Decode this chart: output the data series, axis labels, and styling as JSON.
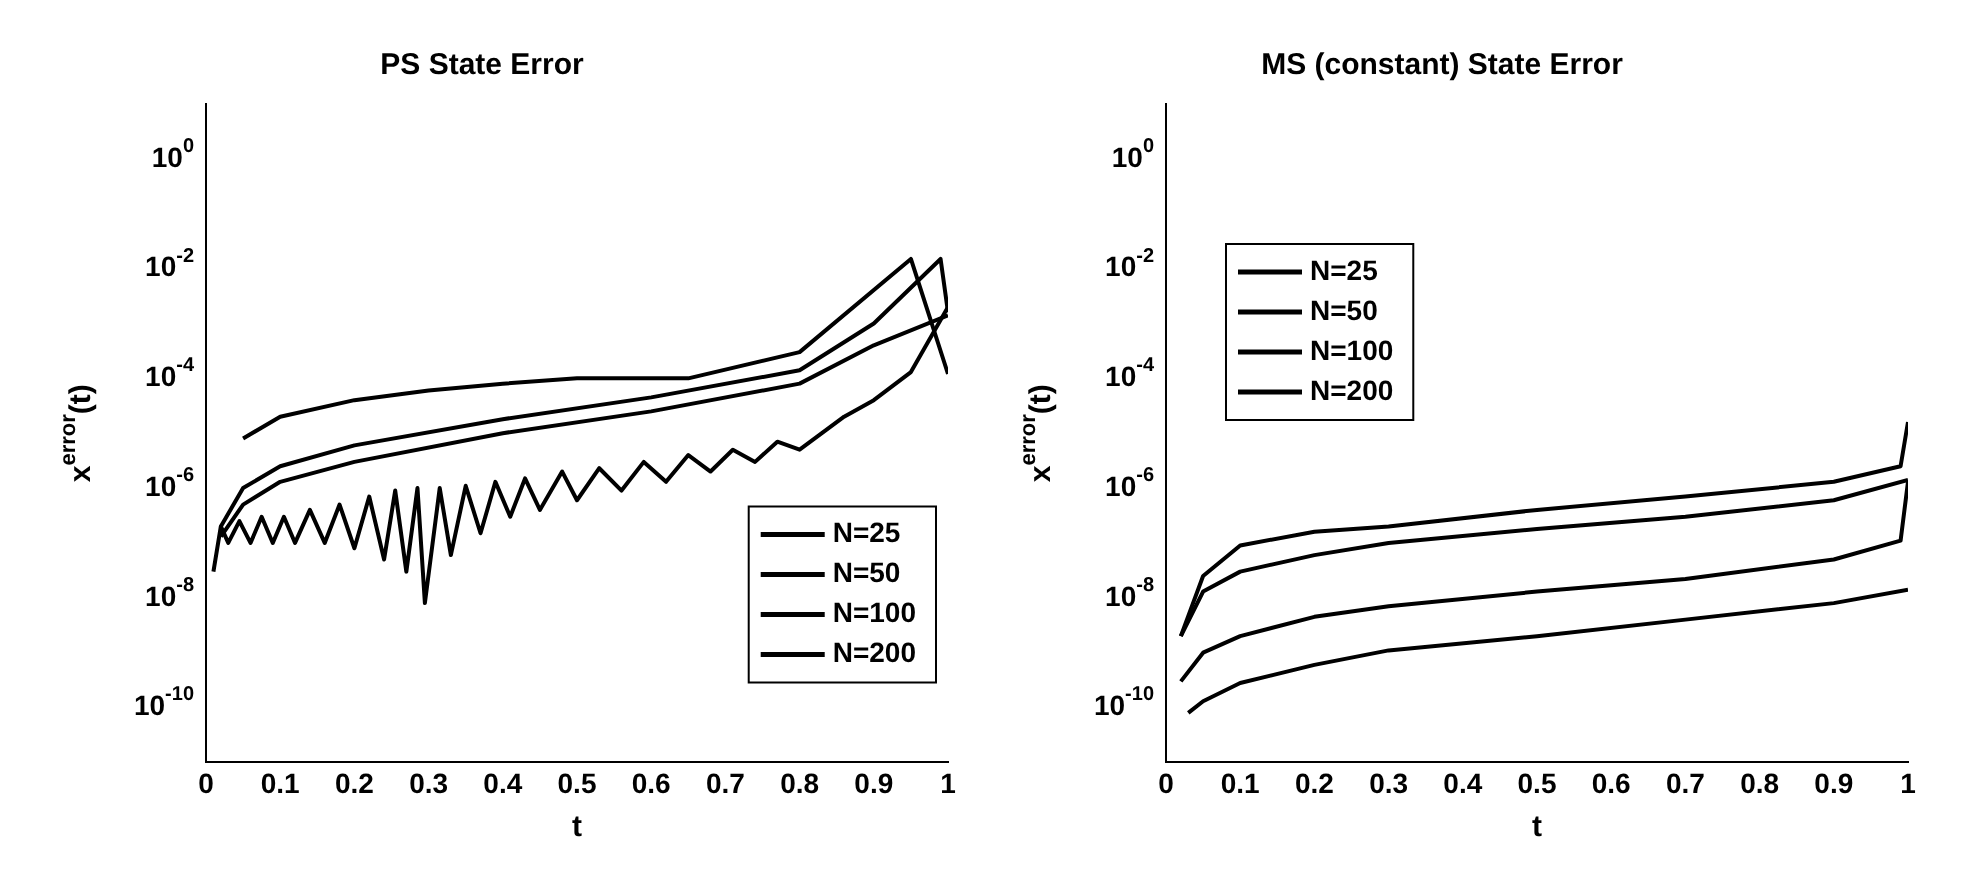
{
  "chart_data": [
    {
      "type": "line",
      "title": "PS State Error",
      "xlabel": "t",
      "ylabel": "x$^{error}$(t)",
      "log": "y",
      "legend": "bottom right",
      "xlim": [
        0,
        1
      ],
      "xticks": [
        0,
        0.1,
        0.2,
        0.3,
        0.4,
        0.5,
        0.6,
        0.7,
        0.8,
        0.9,
        1
      ],
      "ylim": [
        1e-11,
        10
      ],
      "yticks": [
        {
          "value": 1,
          "label": "10$^{0}$"
        },
        {
          "value": 0.01,
          "label": "10$^{-2}$"
        },
        {
          "value": 0.0001,
          "label": "10$^{-4}$"
        },
        {
          "value": 1e-06,
          "label": "10$^{-6}$"
        },
        {
          "value": 1e-08,
          "label": "10$^{-8}$"
        },
        {
          "value": 1e-10,
          "label": "10$^{-10}$"
        }
      ],
      "series": [
        {
          "name": "N=25",
          "color": "#000000",
          "x": [
            0.05,
            0.1,
            0.2,
            0.3,
            0.4,
            0.5,
            0.6,
            0.65,
            0.8,
            0.95,
            1.0
          ],
          "values": [
            8e-06,
            2e-05,
            4e-05,
            6e-05,
            8e-05,
            0.0001,
            0.0001,
            0.0001,
            0.0003,
            0.015,
            0.00012
          ]
        },
        {
          "name": "N=50",
          "color": "#000000",
          "x": [
            0.02,
            0.05,
            0.1,
            0.2,
            0.4,
            0.6,
            0.8,
            0.9,
            0.99,
            1.0
          ],
          "values": [
            2e-07,
            1e-06,
            2.5e-06,
            6e-06,
            1.8e-05,
            4.5e-05,
            0.00014,
            0.001,
            0.015,
            0.0016
          ]
        },
        {
          "name": "N=100",
          "color": "#000000",
          "x": [
            0.02,
            0.05,
            0.1,
            0.2,
            0.4,
            0.6,
            0.8,
            0.9,
            1.0
          ],
          "values": [
            1.3e-07,
            5e-07,
            1.3e-06,
            3e-06,
            1e-05,
            2.5e-05,
            8e-05,
            0.0004,
            0.0014
          ]
        },
        {
          "name": "N=200",
          "color": "#000000",
          "x": [
            0.01,
            0.02,
            0.03,
            0.045,
            0.06,
            0.075,
            0.09,
            0.105,
            0.12,
            0.14,
            0.16,
            0.18,
            0.2,
            0.22,
            0.24,
            0.255,
            0.27,
            0.285,
            0.295,
            0.315,
            0.33,
            0.35,
            0.37,
            0.39,
            0.41,
            0.43,
            0.45,
            0.48,
            0.5,
            0.53,
            0.56,
            0.59,
            0.62,
            0.65,
            0.68,
            0.71,
            0.74,
            0.77,
            0.8,
            0.83,
            0.86,
            0.9,
            0.95,
            1.0
          ],
          "values": [
            3e-08,
            2e-07,
            1e-07,
            2.5e-07,
            1e-07,
            3e-07,
            1e-07,
            3e-07,
            1e-07,
            4e-07,
            1e-07,
            5e-07,
            8e-08,
            7e-07,
            5e-08,
            9e-07,
            3e-08,
            1e-06,
            8e-09,
            1e-06,
            6e-08,
            1.1e-06,
            1.5e-07,
            1.3e-06,
            3e-07,
            1.5e-06,
            4e-07,
            2e-06,
            6e-07,
            2.3e-06,
            9e-07,
            3e-06,
            1.3e-06,
            4e-06,
            2e-06,
            5e-06,
            3e-06,
            7e-06,
            5e-06,
            1e-05,
            2e-05,
            4e-05,
            0.00013,
            0.002
          ]
        }
      ]
    },
    {
      "type": "line",
      "title": "MS (constant) State Error",
      "xlabel": "t",
      "ylabel": "x$^{error}$(t)",
      "log": "y",
      "legend": "top left",
      "xlim": [
        0,
        1
      ],
      "xticks": [
        0,
        0.1,
        0.2,
        0.3,
        0.4,
        0.5,
        0.6,
        0.7,
        0.8,
        0.9,
        1
      ],
      "ylim": [
        1e-11,
        10
      ],
      "yticks": [
        {
          "value": 1,
          "label": "10$^{0}$"
        },
        {
          "value": 0.01,
          "label": "10$^{-2}$"
        },
        {
          "value": 0.0001,
          "label": "10$^{-4}$"
        },
        {
          "value": 1e-06,
          "label": "10$^{-6}$"
        },
        {
          "value": 1e-08,
          "label": "10$^{-8}$"
        },
        {
          "value": 1e-10,
          "label": "10$^{-10}$"
        }
      ],
      "series": [
        {
          "name": "N=25",
          "color": "#000000",
          "x": [
            0.02,
            0.05,
            0.1,
            0.2,
            0.3,
            0.5,
            0.7,
            0.9,
            0.99,
            1.0
          ],
          "values": [
            2e-09,
            2.5e-08,
            9e-08,
            1.6e-07,
            2e-07,
            4e-07,
            7e-07,
            1.3e-06,
            2.5e-06,
            1.6e-05
          ]
        },
        {
          "name": "N=50",
          "color": "#000000",
          "x": [
            0.02,
            0.05,
            0.1,
            0.2,
            0.3,
            0.5,
            0.7,
            0.9,
            1.0
          ],
          "values": [
            2e-09,
            1.3e-08,
            3e-08,
            6e-08,
            1e-07,
            1.8e-07,
            3e-07,
            6e-07,
            1.4e-06
          ]
        },
        {
          "name": "N=100",
          "color": "#000000",
          "x": [
            0.02,
            0.05,
            0.1,
            0.2,
            0.3,
            0.5,
            0.7,
            0.9,
            0.99,
            1.0
          ],
          "values": [
            3e-10,
            1e-09,
            2e-09,
            4.5e-09,
            7e-09,
            1.3e-08,
            2.2e-08,
            5e-08,
            1.1e-07,
            1.3e-06
          ]
        },
        {
          "name": "N=200",
          "color": "#000000",
          "x": [
            0.03,
            0.05,
            0.1,
            0.2,
            0.3,
            0.5,
            0.7,
            0.9,
            1.0
          ],
          "values": [
            8e-11,
            1.3e-10,
            2.8e-10,
            6e-10,
            1.1e-09,
            2e-09,
            4e-09,
            8e-09,
            1.4e-08
          ]
        }
      ]
    }
  ]
}
